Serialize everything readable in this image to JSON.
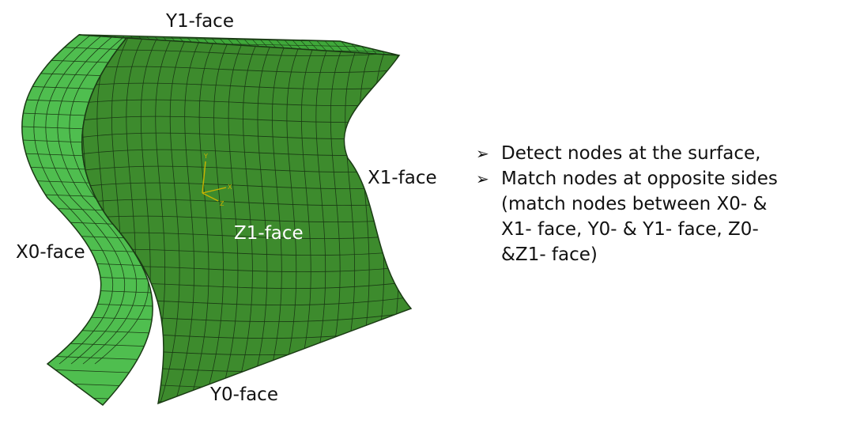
{
  "labels": {
    "y1": "Y1-face",
    "x1": "X1-face",
    "x0": "X0-face",
    "z1": "Z1-face",
    "y0": "Y0-face"
  },
  "axis_triad": {
    "y": "Y",
    "x": "X",
    "z": "Z"
  },
  "bullets": [
    {
      "icon": "arrow-bullet-icon",
      "lines": [
        "Detect nodes at the surface,"
      ]
    },
    {
      "icon": "arrow-bullet-icon",
      "lines": [
        "Match nodes at opposite sides",
        "(match nodes between X0- &",
        "X1- face, Y0- & Y1- face, Z0-",
        "&Z1- face)"
      ]
    }
  ],
  "colors": {
    "front_face": "#3d8b2d",
    "side_face": "#4fbe4f",
    "top_face": "#3fa83a",
    "mesh_line": "#1a3a14",
    "axis": "#c8b400"
  }
}
